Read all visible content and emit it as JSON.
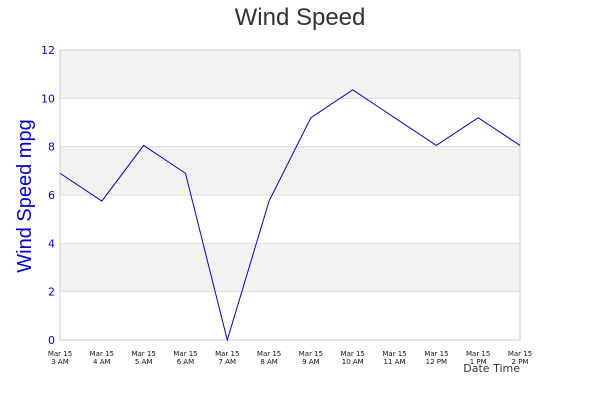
{
  "chart_data": {
    "type": "line",
    "title": "Wind Speed",
    "xlabel": "Date Time",
    "ylabel": "Wind Speed mpg",
    "ylim": [
      0,
      12
    ],
    "yticks": [
      0,
      2,
      4,
      6,
      8,
      10,
      12
    ],
    "grid": true,
    "categories": [
      [
        "Mar 15",
        "3 AM"
      ],
      [
        "Mar 15",
        "4 AM"
      ],
      [
        "Mar 15",
        "5 AM"
      ],
      [
        "Mar 15",
        "6 AM"
      ],
      [
        "Mar 15",
        "7 AM"
      ],
      [
        "Mar 15",
        "8 AM"
      ],
      [
        "Mar 15",
        "9 AM"
      ],
      [
        "Mar 15",
        "10 AM"
      ],
      [
        "Mar 15",
        "11 AM"
      ],
      [
        "Mar 15",
        "12 PM"
      ],
      [
        "Mar 15",
        "1 PM"
      ],
      [
        "Mar 15",
        "2 PM"
      ]
    ],
    "series": [
      {
        "values": [
          6.9,
          5.75,
          8.05,
          6.9,
          0,
          5.75,
          9.2,
          10.35,
          9.2,
          8.05,
          9.2,
          8.05
        ]
      }
    ],
    "colors": {
      "line": "#0000cc",
      "axis_text": "#0000cc",
      "band": "#f2f2f2",
      "gridline": "#dddddd",
      "plot_border": "#cccccc"
    }
  }
}
